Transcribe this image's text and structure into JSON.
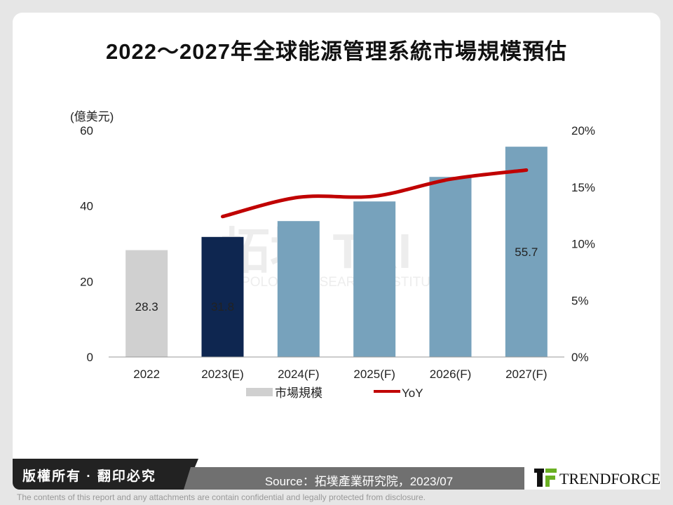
{
  "title": "2022～2027年全球能源管理系統市場規模預估",
  "chart_data": {
    "type": "bar+line",
    "title": "2022～2027年全球能源管理系統市場規模預估",
    "ylabel": "(億美元)",
    "ylim": [
      0,
      60
    ],
    "yticks": [
      "0",
      "20",
      "40",
      "60"
    ],
    "y2lim": [
      0,
      20
    ],
    "y2ticks": [
      "0%",
      "5%",
      "10%",
      "15%",
      "20%"
    ],
    "categories": [
      "2022",
      "2023(E)",
      "2024(F)",
      "2025(F)",
      "2026(F)",
      "2027(F)"
    ],
    "series": [
      {
        "name": "市場規模",
        "type": "bar",
        "values": [
          28.3,
          31.8,
          36.0,
          41.2,
          47.7,
          55.7
        ],
        "data_labels": [
          "28.3",
          "31.8",
          "",
          "",
          "",
          "55.7"
        ],
        "colors": [
          "#d0d0d0",
          "#0e2650",
          "#77a2bc",
          "#77a2bc",
          "#77a2bc",
          "#77a2bc"
        ]
      },
      {
        "name": "YoY",
        "type": "line",
        "axis": "right",
        "values": [
          null,
          12.4,
          14.1,
          14.2,
          15.7,
          16.5
        ],
        "color": "#c00000"
      }
    ],
    "legend": "bottom",
    "grid": false
  },
  "watermark": {
    "text": "拓墣 TRI",
    "subtext": "TOPOLOGY RESEARCH INSTITUTE"
  },
  "footer": {
    "copyright": "版權所有 · 翻印必究",
    "source": "Source：拓墣產業研究院，2023/07",
    "logo": "TRENDFORCE",
    "disclaimer": "The contents of this report and any attachments are contain confidential and legally protected from disclosure."
  }
}
